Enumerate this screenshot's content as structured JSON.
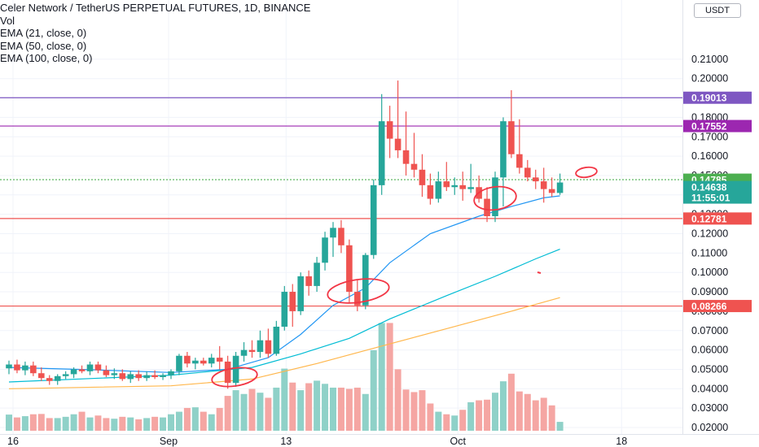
{
  "header": {
    "title": "Celer Network / TetherUS PERPETUAL FUTURES, 1D, BINANCE",
    "indicators": [
      "Vol",
      "EMA (21, close, 0)",
      "EMA (50, close, 0)",
      "EMA (100, close, 0)"
    ]
  },
  "currency_button": "USDT",
  "colors": {
    "up": "#26a69a",
    "down": "#ef5350",
    "vol_up": "#8fd1c8",
    "vol_down": "#f5a6a3",
    "ema21": "#2196f3",
    "ema50": "#00bcd4",
    "ema100": "#ffb74d",
    "line_1": "#7e57c2",
    "line_2": "#9c27b0",
    "line_3": "#ef5350",
    "annotation": "#f23645"
  },
  "chart_data": {
    "type": "candlestick",
    "title": "Celer Network / TetherUS PERPETUAL FUTURES, 1D, BINANCE",
    "y_axis_ticks": [
      "0.21000",
      "0.20000",
      "0.19000",
      "0.18000",
      "0.17000",
      "0.16000",
      "0.15000",
      "0.14000",
      "0.13000",
      "0.12000",
      "0.11000",
      "0.10000",
      "0.09000",
      "0.08000",
      "0.07000",
      "0.06000",
      "0.05000",
      "0.04000",
      "0.03000",
      "0.02000"
    ],
    "ylim": [
      0.0175,
      0.2135
    ],
    "x_axis_ticks": [
      "16",
      "Sep",
      "13",
      "Oct",
      "18"
    ],
    "price_tags": [
      {
        "value": 0.19013,
        "label": "0.19013",
        "color": "#7e57c2"
      },
      {
        "value": 0.17552,
        "label": "0.17552",
        "color": "#9c27b0"
      },
      {
        "value": 0.14785,
        "label": "0.14785",
        "color": "#4caf50"
      },
      {
        "value": 0.14638,
        "label": "0.14638",
        "sublabel": "11:55:01",
        "color": "#26a69a"
      },
      {
        "value": 0.12781,
        "label": "0.12781",
        "color": "#ef5350"
      },
      {
        "value": 0.08266,
        "label": "0.08266",
        "color": "#ef5350"
      }
    ],
    "horizontal_lines": [
      {
        "value": 0.19013,
        "color": "#7e57c2"
      },
      {
        "value": 0.17552,
        "color": "#9c27b0"
      },
      {
        "value": 0.14785,
        "color": "#4caf50",
        "dotted": true
      },
      {
        "value": 0.12781,
        "color": "#ef5350"
      },
      {
        "value": 0.08266,
        "color": "#ef5350"
      }
    ],
    "candles": [
      {
        "o": 0.0505,
        "h": 0.0545,
        "l": 0.0475,
        "c": 0.0525
      },
      {
        "o": 0.0525,
        "h": 0.055,
        "l": 0.048,
        "c": 0.0495
      },
      {
        "o": 0.0495,
        "h": 0.054,
        "l": 0.047,
        "c": 0.052
      },
      {
        "o": 0.052,
        "h": 0.054,
        "l": 0.0465,
        "c": 0.048
      },
      {
        "o": 0.048,
        "h": 0.051,
        "l": 0.044,
        "c": 0.0455
      },
      {
        "o": 0.0455,
        "h": 0.047,
        "l": 0.042,
        "c": 0.044
      },
      {
        "o": 0.044,
        "h": 0.0475,
        "l": 0.042,
        "c": 0.0465
      },
      {
        "o": 0.0465,
        "h": 0.049,
        "l": 0.045,
        "c": 0.0475
      },
      {
        "o": 0.0475,
        "h": 0.051,
        "l": 0.0455,
        "c": 0.05
      },
      {
        "o": 0.05,
        "h": 0.052,
        "l": 0.048,
        "c": 0.049
      },
      {
        "o": 0.049,
        "h": 0.054,
        "l": 0.047,
        "c": 0.0525
      },
      {
        "o": 0.0525,
        "h": 0.054,
        "l": 0.048,
        "c": 0.0495
      },
      {
        "o": 0.0495,
        "h": 0.052,
        "l": 0.046,
        "c": 0.047
      },
      {
        "o": 0.047,
        "h": 0.0505,
        "l": 0.045,
        "c": 0.048
      },
      {
        "o": 0.048,
        "h": 0.05,
        "l": 0.044,
        "c": 0.045
      },
      {
        "o": 0.045,
        "h": 0.049,
        "l": 0.043,
        "c": 0.0475
      },
      {
        "o": 0.0475,
        "h": 0.0495,
        "l": 0.044,
        "c": 0.0455
      },
      {
        "o": 0.0455,
        "h": 0.049,
        "l": 0.044,
        "c": 0.047
      },
      {
        "o": 0.047,
        "h": 0.0495,
        "l": 0.045,
        "c": 0.046
      },
      {
        "o": 0.046,
        "h": 0.048,
        "l": 0.0445,
        "c": 0.047
      },
      {
        "o": 0.047,
        "h": 0.05,
        "l": 0.045,
        "c": 0.049
      },
      {
        "o": 0.049,
        "h": 0.058,
        "l": 0.047,
        "c": 0.057
      },
      {
        "o": 0.057,
        "h": 0.059,
        "l": 0.051,
        "c": 0.053
      },
      {
        "o": 0.053,
        "h": 0.056,
        "l": 0.05,
        "c": 0.0545
      },
      {
        "o": 0.0545,
        "h": 0.056,
        "l": 0.052,
        "c": 0.053
      },
      {
        "o": 0.053,
        "h": 0.058,
        "l": 0.051,
        "c": 0.056
      },
      {
        "o": 0.056,
        "h": 0.062,
        "l": 0.05,
        "c": 0.054
      },
      {
        "o": 0.054,
        "h": 0.057,
        "l": 0.04,
        "c": 0.043
      },
      {
        "o": 0.043,
        "h": 0.059,
        "l": 0.041,
        "c": 0.057
      },
      {
        "o": 0.057,
        "h": 0.064,
        "l": 0.054,
        "c": 0.06
      },
      {
        "o": 0.06,
        "h": 0.065,
        "l": 0.056,
        "c": 0.059
      },
      {
        "o": 0.059,
        "h": 0.07,
        "l": 0.056,
        "c": 0.065
      },
      {
        "o": 0.065,
        "h": 0.071,
        "l": 0.056,
        "c": 0.058
      },
      {
        "o": 0.058,
        "h": 0.075,
        "l": 0.057,
        "c": 0.072
      },
      {
        "o": 0.072,
        "h": 0.093,
        "l": 0.07,
        "c": 0.09
      },
      {
        "o": 0.09,
        "h": 0.094,
        "l": 0.072,
        "c": 0.08
      },
      {
        "o": 0.08,
        "h": 0.1,
        "l": 0.078,
        "c": 0.098
      },
      {
        "o": 0.098,
        "h": 0.101,
        "l": 0.088,
        "c": 0.093
      },
      {
        "o": 0.093,
        "h": 0.108,
        "l": 0.09,
        "c": 0.105
      },
      {
        "o": 0.105,
        "h": 0.121,
        "l": 0.101,
        "c": 0.118
      },
      {
        "o": 0.118,
        "h": 0.126,
        "l": 0.108,
        "c": 0.123
      },
      {
        "o": 0.123,
        "h": 0.127,
        "l": 0.11,
        "c": 0.114
      },
      {
        "o": 0.114,
        "h": 0.117,
        "l": 0.084,
        "c": 0.09
      },
      {
        "o": 0.09,
        "h": 0.096,
        "l": 0.08,
        "c": 0.083
      },
      {
        "o": 0.083,
        "h": 0.11,
        "l": 0.081,
        "c": 0.109
      },
      {
        "o": 0.109,
        "h": 0.148,
        "l": 0.107,
        "c": 0.145
      },
      {
        "o": 0.145,
        "h": 0.192,
        "l": 0.14,
        "c": 0.178
      },
      {
        "o": 0.178,
        "h": 0.186,
        "l": 0.159,
        "c": 0.169
      },
      {
        "o": 0.169,
        "h": 0.199,
        "l": 0.159,
        "c": 0.163
      },
      {
        "o": 0.163,
        "h": 0.183,
        "l": 0.15,
        "c": 0.156
      },
      {
        "o": 0.156,
        "h": 0.172,
        "l": 0.149,
        "c": 0.153
      },
      {
        "o": 0.153,
        "h": 0.161,
        "l": 0.139,
        "c": 0.145
      },
      {
        "o": 0.145,
        "h": 0.151,
        "l": 0.135,
        "c": 0.138
      },
      {
        "o": 0.138,
        "h": 0.152,
        "l": 0.136,
        "c": 0.147
      },
      {
        "o": 0.147,
        "h": 0.157,
        "l": 0.142,
        "c": 0.144
      },
      {
        "o": 0.144,
        "h": 0.149,
        "l": 0.14,
        "c": 0.145
      },
      {
        "o": 0.145,
        "h": 0.152,
        "l": 0.137,
        "c": 0.143
      },
      {
        "o": 0.143,
        "h": 0.156,
        "l": 0.141,
        "c": 0.144
      },
      {
        "o": 0.144,
        "h": 0.15,
        "l": 0.136,
        "c": 0.138
      },
      {
        "o": 0.138,
        "h": 0.144,
        "l": 0.126,
        "c": 0.129
      },
      {
        "o": 0.129,
        "h": 0.152,
        "l": 0.126,
        "c": 0.149
      },
      {
        "o": 0.149,
        "h": 0.18,
        "l": 0.134,
        "c": 0.178
      },
      {
        "o": 0.178,
        "h": 0.194,
        "l": 0.159,
        "c": 0.161
      },
      {
        "o": 0.161,
        "h": 0.179,
        "l": 0.151,
        "c": 0.154
      },
      {
        "o": 0.154,
        "h": 0.158,
        "l": 0.147,
        "c": 0.149
      },
      {
        "o": 0.149,
        "h": 0.153,
        "l": 0.143,
        "c": 0.147
      },
      {
        "o": 0.147,
        "h": 0.154,
        "l": 0.136,
        "c": 0.143
      },
      {
        "o": 0.143,
        "h": 0.149,
        "l": 0.139,
        "c": 0.141
      },
      {
        "o": 0.141,
        "h": 0.151,
        "l": 0.14,
        "c": 0.1464
      }
    ],
    "volume": [
      0.255,
      0.21,
      0.23,
      0.26,
      0.265,
      0.2,
      0.2,
      0.22,
      0.26,
      0.3,
      0.21,
      0.24,
      0.2,
      0.19,
      0.22,
      0.21,
      0.18,
      0.2,
      0.22,
      0.21,
      0.26,
      0.3,
      0.36,
      0.37,
      0.3,
      0.26,
      0.36,
      0.55,
      0.64,
      0.58,
      0.66,
      0.6,
      0.52,
      0.68,
      0.98,
      0.76,
      0.64,
      0.75,
      0.79,
      0.74,
      0.68,
      0.68,
      0.66,
      0.68,
      0.58,
      1.27,
      1.7,
      1.7,
      0.97,
      0.65,
      0.61,
      0.64,
      0.43,
      0.3,
      0.26,
      0.24,
      0.33,
      0.45,
      0.48,
      0.49,
      0.6,
      0.78,
      0.9,
      0.62,
      0.58,
      0.48,
      0.52,
      0.4,
      0.14
    ],
    "volume_colors_match_candles": true,
    "ema": [
      {
        "name": "EMA (21, close, 0)",
        "color": "#2196f3",
        "values": [
          {
            "i": 0,
            "v": 0.051
          },
          {
            "i": 10,
            "v": 0.0498
          },
          {
            "i": 20,
            "v": 0.0484
          },
          {
            "i": 27,
            "v": 0.05
          },
          {
            "i": 32,
            "v": 0.056
          },
          {
            "i": 36,
            "v": 0.068
          },
          {
            "i": 40,
            "v": 0.083
          },
          {
            "i": 44,
            "v": 0.092
          },
          {
            "i": 47,
            "v": 0.105
          },
          {
            "i": 52,
            "v": 0.12
          },
          {
            "i": 58,
            "v": 0.129
          },
          {
            "i": 62,
            "v": 0.134
          },
          {
            "i": 66,
            "v": 0.1385
          },
          {
            "i": 68,
            "v": 0.1395
          }
        ]
      },
      {
        "name": "EMA (50, close, 0)",
        "color": "#00bcd4",
        "values": [
          {
            "i": 0,
            "v": 0.0435
          },
          {
            "i": 20,
            "v": 0.047
          },
          {
            "i": 30,
            "v": 0.051
          },
          {
            "i": 36,
            "v": 0.058
          },
          {
            "i": 42,
            "v": 0.066
          },
          {
            "i": 47,
            "v": 0.076
          },
          {
            "i": 54,
            "v": 0.088
          },
          {
            "i": 60,
            "v": 0.098
          },
          {
            "i": 65,
            "v": 0.107
          },
          {
            "i": 68,
            "v": 0.112
          }
        ]
      },
      {
        "name": "EMA (100, close, 0)",
        "color": "#ffb74d",
        "values": [
          {
            "i": 0,
            "v": 0.04
          },
          {
            "i": 20,
            "v": 0.0415
          },
          {
            "i": 30,
            "v": 0.045
          },
          {
            "i": 38,
            "v": 0.053
          },
          {
            "i": 46,
            "v": 0.062
          },
          {
            "i": 54,
            "v": 0.071
          },
          {
            "i": 62,
            "v": 0.08
          },
          {
            "i": 68,
            "v": 0.087
          }
        ]
      }
    ],
    "annotations": [
      "circle near Sep 9 low",
      "circle near Sep 20 low",
      "circle near Oct 4 low",
      "circle at last candle",
      "small red mark"
    ]
  }
}
